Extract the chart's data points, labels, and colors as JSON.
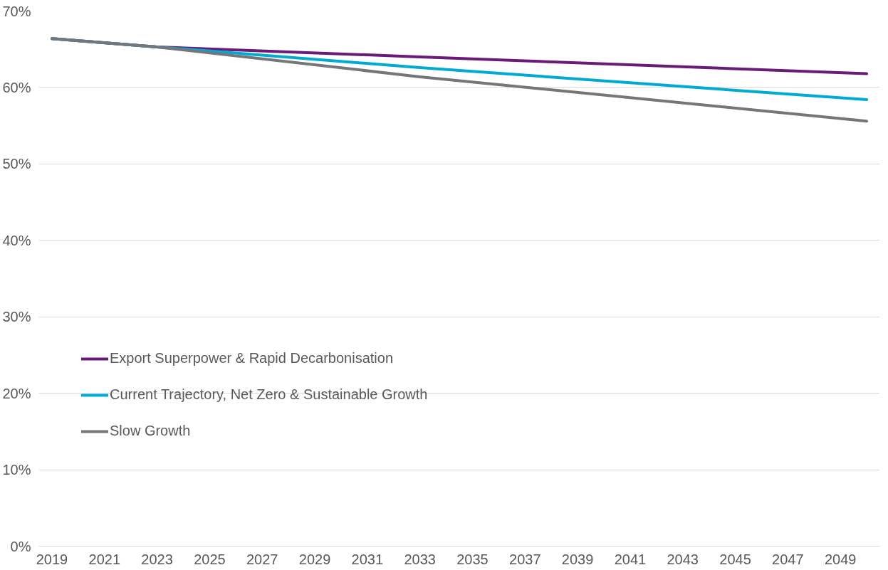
{
  "chart_data": {
    "type": "line",
    "x": [
      2019,
      2023,
      2033,
      2050
    ],
    "series": [
      {
        "name": "Export Superpower & Rapid Decarbonisation",
        "color": "#6a1b7a",
        "values": [
          66.4,
          65.3,
          64.0,
          61.8
        ]
      },
      {
        "name": "Current Trajectory, Net Zero & Sustainable Growth",
        "color": "#00aad2",
        "values": [
          66.4,
          65.3,
          62.6,
          58.4
        ]
      },
      {
        "name": "Slow Growth",
        "color": "#75767a",
        "values": [
          66.4,
          65.3,
          61.4,
          55.6
        ]
      }
    ],
    "xlim": [
      2018.5,
      2050.5
    ],
    "xticks": [
      2019,
      2021,
      2023,
      2025,
      2027,
      2029,
      2031,
      2033,
      2035,
      2037,
      2039,
      2041,
      2043,
      2045,
      2047,
      2049
    ],
    "ylim": [
      0,
      70
    ],
    "yticks": [
      {
        "value": 0,
        "label": "0%"
      },
      {
        "value": 10,
        "label": "10%"
      },
      {
        "value": 20,
        "label": "20%"
      },
      {
        "value": 30,
        "label": "30%"
      },
      {
        "value": 40,
        "label": "40%"
      },
      {
        "value": 50,
        "label": "50%"
      },
      {
        "value": 60,
        "label": "60%"
      },
      {
        "value": 70,
        "label": "70%"
      }
    ],
    "grid": "y",
    "legend": "bottom left",
    "line_style": "solid",
    "marker": "none"
  }
}
